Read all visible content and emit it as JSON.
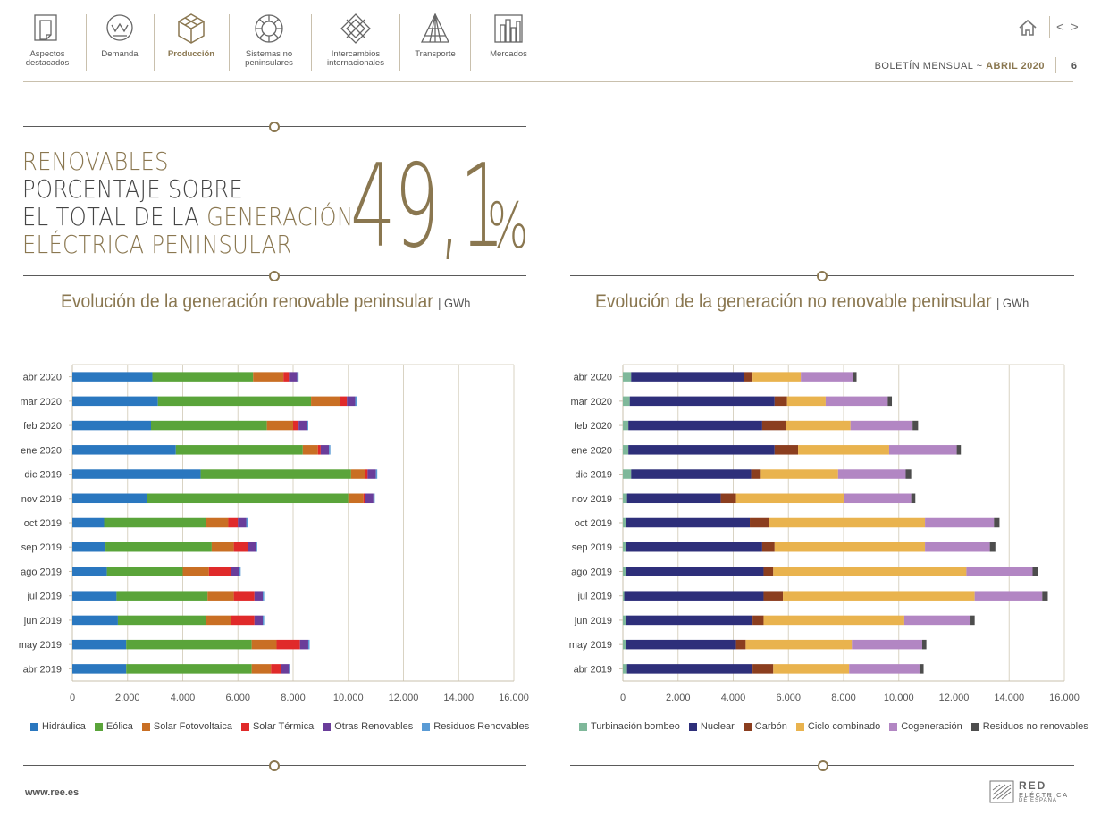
{
  "nav": {
    "items": [
      {
        "label1": "Aspectos",
        "label2": "destacados",
        "icon": "document-icon"
      },
      {
        "label1": "Demanda",
        "label2": "",
        "icon": "meter-icon"
      },
      {
        "label1": "Producción",
        "label2": "",
        "icon": "production-icon"
      },
      {
        "label1": "Sistemas no",
        "label2": "peninsulares",
        "icon": "islands-icon"
      },
      {
        "label1": "Intercambios",
        "label2": "internacionales",
        "icon": "exchange-icon"
      },
      {
        "label1": "Transporte",
        "label2": "",
        "icon": "tower-icon"
      },
      {
        "label1": "Mercados",
        "label2": "",
        "icon": "market-icon"
      }
    ],
    "prev": "<",
    "next": ">"
  },
  "header": {
    "bulletin": "BOLETÍN MENSUAL",
    "separator": "~",
    "month": "ABRIL 2020",
    "page": "6"
  },
  "headline": {
    "line1": "RENOVABLES",
    "line2": "PORCENTAJE SOBRE",
    "line3a": "EL TOTAL DE LA ",
    "line3b": "GENERACIÓN",
    "line4": "ELÉCTRICA PENINSULAR",
    "value": "49,1",
    "unit": "%"
  },
  "charts": {
    "renewable_title": "Evolución de la generación renovable peninsular",
    "renewable_unit": "| GWh",
    "nonrenewable_title": "Evolución de la generación no renovable peninsular",
    "nonrenewable_unit": "| GWh"
  },
  "chart_data": [
    {
      "type": "bar",
      "orientation": "horizontal",
      "stacked": true,
      "title": "Evolución de la generación renovable peninsular",
      "unit": "GWh",
      "categories": [
        "abr 2020",
        "mar 2020",
        "feb 2020",
        "ene 2020",
        "dic 2019",
        "nov 2019",
        "oct 2019",
        "sep 2019",
        "ago 2019",
        "jul 2019",
        "jun 2019",
        "may 2019",
        "abr 2019"
      ],
      "xlim": [
        0,
        16000
      ],
      "xticks": [
        "0",
        "2.000",
        "4.000",
        "6.000",
        "8.000",
        "10.000",
        "12.000",
        "14.000",
        "16.000"
      ],
      "grid": true,
      "legend": "bottom",
      "series": [
        {
          "name": "Hidráulica",
          "color": "#2a77bf",
          "values": [
            2900,
            3100,
            2850,
            3750,
            4650,
            2700,
            1150,
            1200,
            1250,
            1600,
            1650,
            1950,
            1950
          ]
        },
        {
          "name": "Eólica",
          "color": "#5aa43a",
          "values": [
            3650,
            5550,
            4200,
            4600,
            5450,
            7300,
            3700,
            3850,
            2750,
            3300,
            3200,
            4550,
            4550
          ]
        },
        {
          "name": "Solar Fotovoltaica",
          "color": "#c96f24",
          "values": [
            1100,
            1050,
            950,
            550,
            500,
            550,
            800,
            800,
            950,
            950,
            900,
            900,
            700
          ]
        },
        {
          "name": "Solar Térmica",
          "color": "#e02a2a",
          "values": [
            200,
            250,
            200,
            100,
            100,
            60,
            350,
            500,
            800,
            750,
            850,
            850,
            350
          ]
        },
        {
          "name": "Otras Renovables",
          "color": "#6a3d9a",
          "values": [
            300,
            300,
            300,
            300,
            300,
            300,
            300,
            300,
            300,
            300,
            300,
            300,
            300
          ]
        },
        {
          "name": "Residuos Renovables",
          "color": "#5a9bd5",
          "values": [
            50,
            50,
            50,
            50,
            50,
            50,
            50,
            50,
            50,
            50,
            50,
            50,
            50
          ]
        }
      ]
    },
    {
      "type": "bar",
      "orientation": "horizontal",
      "stacked": true,
      "title": "Evolución de la generación no renovable peninsular",
      "unit": "GWh",
      "categories": [
        "abr 2020",
        "mar 2020",
        "feb 2020",
        "ene 2020",
        "dic 2019",
        "nov 2019",
        "oct 2019",
        "sep 2019",
        "ago 2019",
        "jul 2019",
        "jun 2019",
        "may 2019",
        "abr 2019"
      ],
      "xlim": [
        0,
        16000
      ],
      "xticks": [
        "0",
        "2.000",
        "4.000",
        "6.000",
        "8.000",
        "10.000",
        "12.000",
        "14.000",
        "16.000"
      ],
      "grid": true,
      "legend": "bottom",
      "series": [
        {
          "name": "Turbinación bombeo",
          "color": "#7fb89a",
          "values": [
            300,
            250,
            200,
            200,
            300,
            150,
            100,
            100,
            100,
            50,
            100,
            100,
            150
          ]
        },
        {
          "name": "Nuclear",
          "color": "#2e2f7a",
          "values": [
            4100,
            5250,
            4850,
            5300,
            4350,
            3400,
            4500,
            4950,
            5000,
            5050,
            4600,
            4000,
            4550
          ]
        },
        {
          "name": "Carbón",
          "color": "#8b3e1f",
          "values": [
            300,
            450,
            850,
            850,
            350,
            550,
            700,
            450,
            350,
            700,
            400,
            350,
            750
          ]
        },
        {
          "name": "Ciclo combinado",
          "color": "#e9b34e",
          "values": [
            1750,
            1400,
            2350,
            3300,
            2800,
            3900,
            5650,
            5450,
            7000,
            6950,
            5100,
            3850,
            2750
          ]
        },
        {
          "name": "Cogeneración",
          "color": "#b286c3",
          "values": [
            1900,
            2250,
            2250,
            2450,
            2450,
            2450,
            2500,
            2350,
            2400,
            2450,
            2400,
            2550,
            2550
          ]
        },
        {
          "name": "Residuos no renovables",
          "color": "#4d4d4d",
          "values": [
            120,
            150,
            200,
            150,
            200,
            150,
            200,
            200,
            200,
            200,
            150,
            150,
            150
          ]
        }
      ]
    }
  ],
  "footer": {
    "url": "www.ree.es",
    "logo_line1": "RED",
    "logo_line2": "ELÉCTRICA",
    "logo_line3": "DE ESPAÑA"
  },
  "colors": {
    "accent": "#8a7750"
  }
}
